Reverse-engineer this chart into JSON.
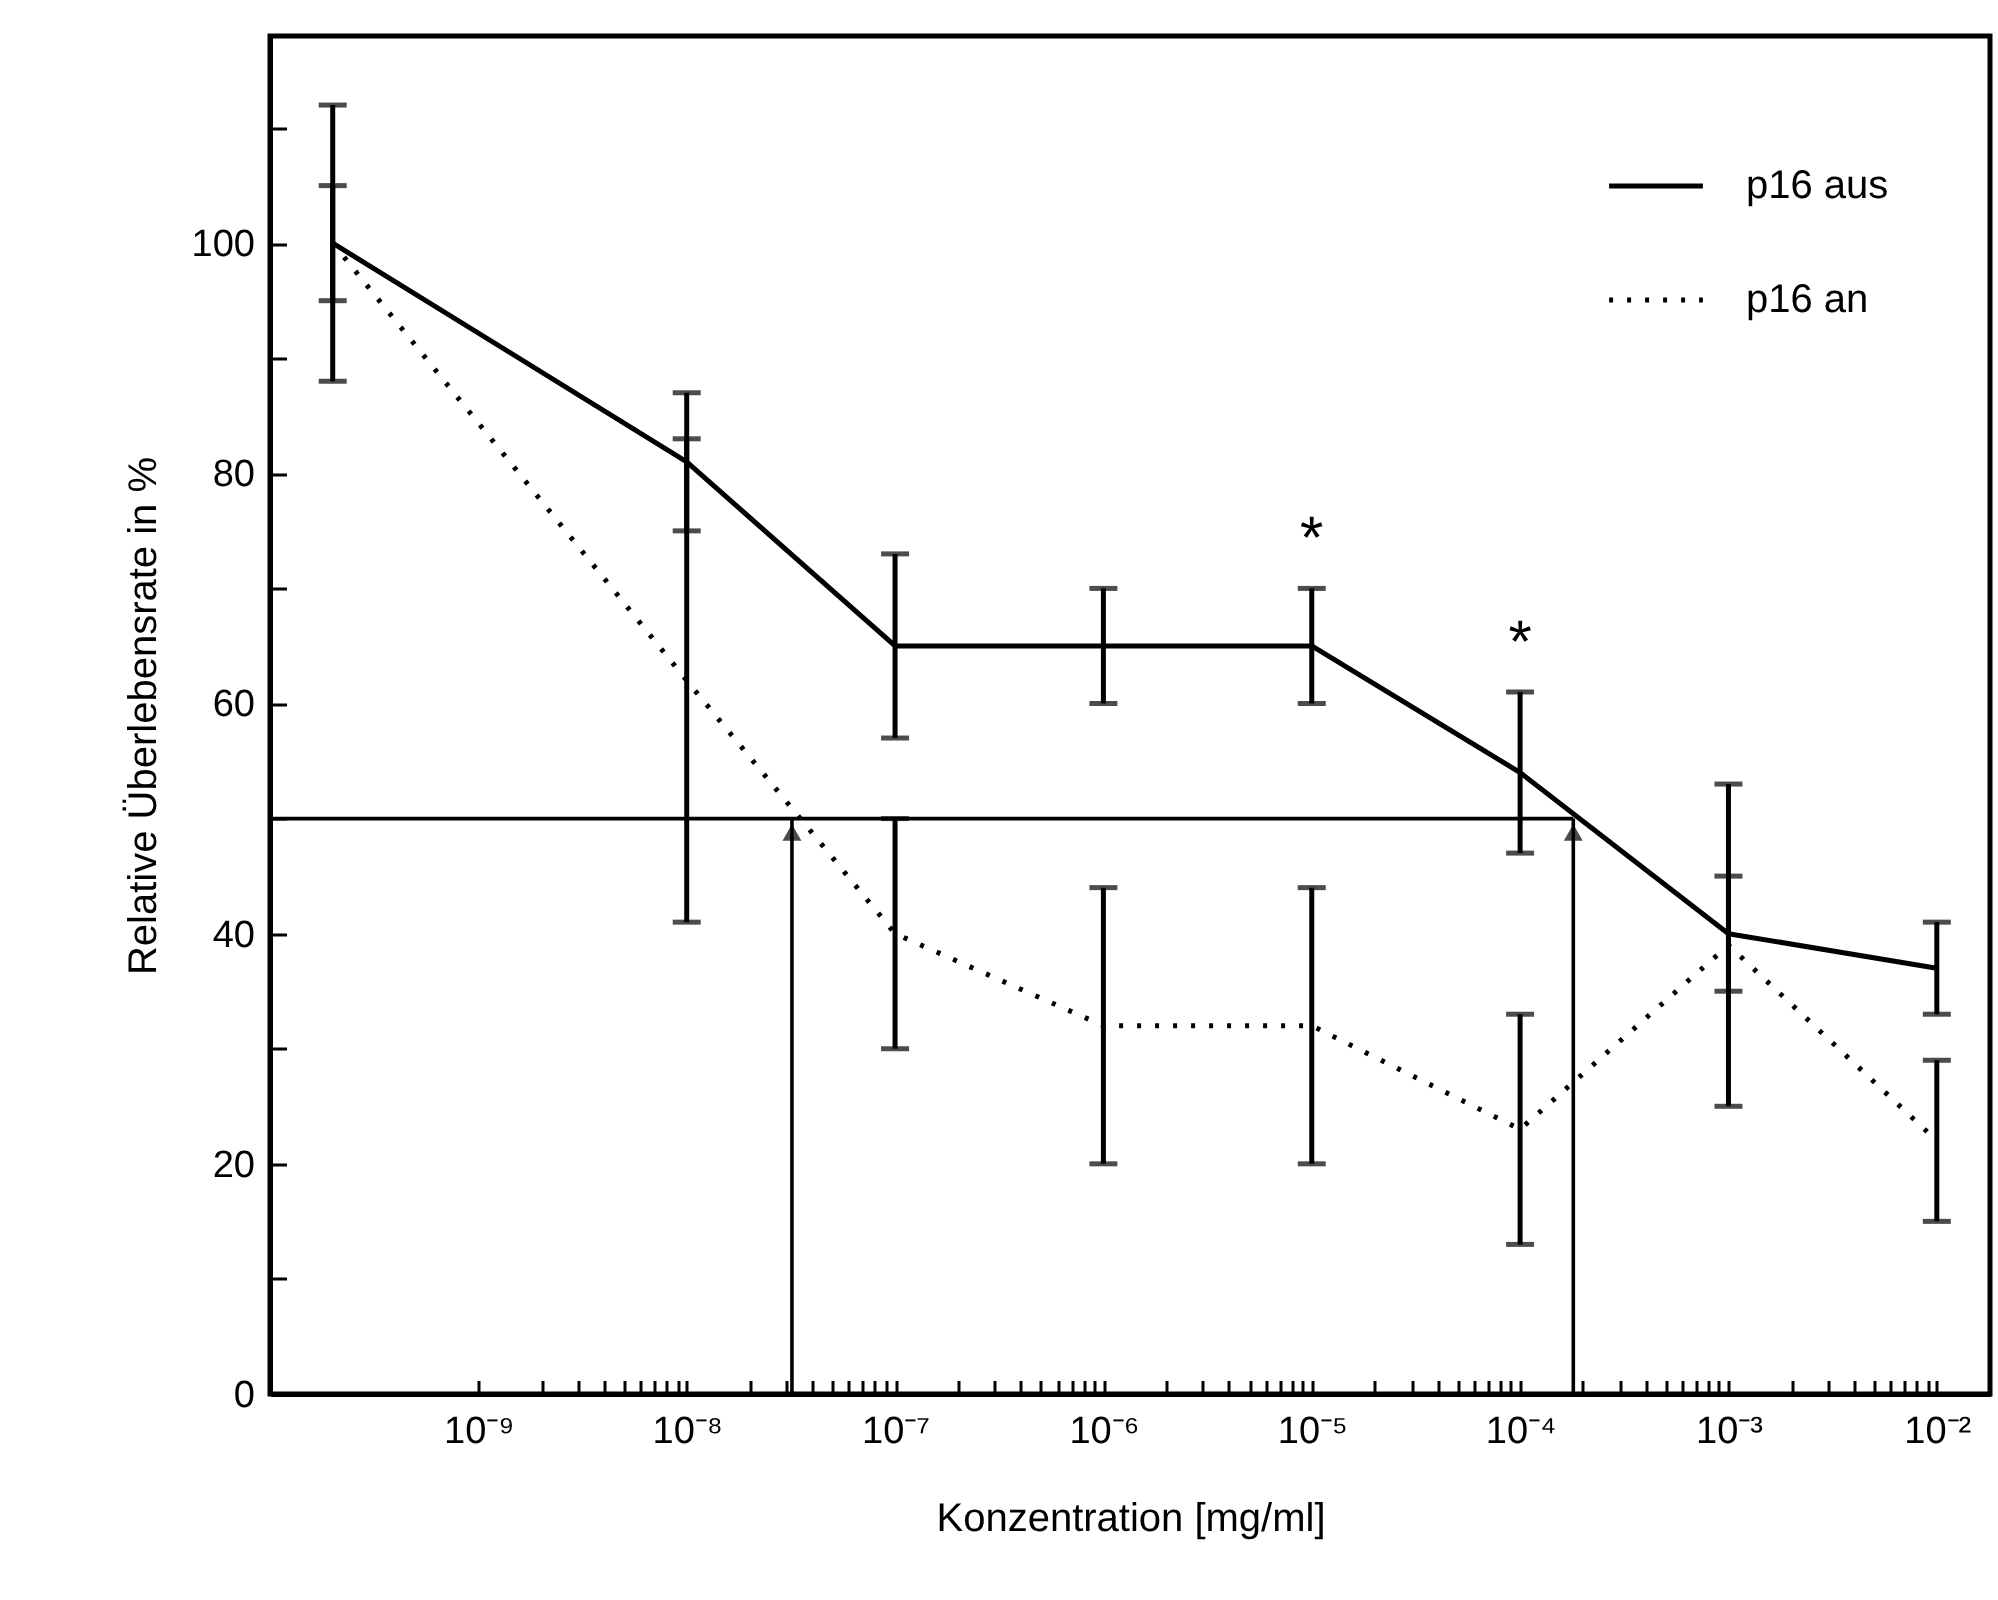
{
  "chart_data": {
    "type": "line",
    "xlabel": "Konzentration [mg/ml]",
    "ylabel": "Relative Überlebensrate in %",
    "x": [
      2e-10,
      1e-08,
      1e-07,
      1e-06,
      1e-05,
      0.0001,
      0.001,
      0.01
    ],
    "series": [
      {
        "name": "p16 aus",
        "color": "#000000",
        "line_style": "solid",
        "values": [
          100,
          81,
          65,
          65,
          65,
          54,
          40,
          37
        ],
        "errors": [
          5,
          6,
          8,
          5,
          5,
          7,
          5,
          4
        ]
      },
      {
        "name": "p16 an",
        "color": "#000000",
        "line_style": "dotted",
        "values": [
          100,
          62,
          40,
          32,
          32,
          23,
          39,
          22
        ],
        "errors": [
          12,
          21,
          10,
          12,
          12,
          10,
          14,
          7
        ]
      }
    ],
    "log": "x",
    "xlim": [
      1e-10,
      0.018
    ],
    "xticks": [
      {
        "value": 1e-09,
        "label": "10⁻⁹"
      },
      {
        "value": 2e-09,
        "label": null
      },
      {
        "value": 3e-09,
        "label": null
      },
      {
        "value": 4e-09,
        "label": null
      },
      {
        "value": 5e-09,
        "label": null
      },
      {
        "value": 6e-09,
        "label": null
      },
      {
        "value": 7e-09,
        "label": null
      },
      {
        "value": 8e-09,
        "label": null
      },
      {
        "value": 9e-09,
        "label": null
      },
      {
        "value": 1e-08,
        "label": "10⁻⁸"
      },
      {
        "value": 2e-08,
        "label": null
      },
      {
        "value": 3e-08,
        "label": null
      },
      {
        "value": 4e-08,
        "label": null
      },
      {
        "value": 5e-08,
        "label": null
      },
      {
        "value": 6e-08,
        "label": null
      },
      {
        "value": 7e-08,
        "label": null
      },
      {
        "value": 8e-08,
        "label": null
      },
      {
        "value": 9e-08,
        "label": null
      },
      {
        "value": 1e-07,
        "label": "10⁻⁷"
      },
      {
        "value": 2e-07,
        "label": null
      },
      {
        "value": 3e-07,
        "label": null
      },
      {
        "value": 4e-07,
        "label": null
      },
      {
        "value": 5e-07,
        "label": null
      },
      {
        "value": 6e-07,
        "label": null
      },
      {
        "value": 7e-07,
        "label": null
      },
      {
        "value": 8e-07,
        "label": null
      },
      {
        "value": 9e-07,
        "label": null
      },
      {
        "value": 1e-06,
        "label": "10⁻⁶"
      },
      {
        "value": 2e-06,
        "label": null
      },
      {
        "value": 3e-06,
        "label": null
      },
      {
        "value": 4e-06,
        "label": null
      },
      {
        "value": 5e-06,
        "label": null
      },
      {
        "value": 6e-06,
        "label": null
      },
      {
        "value": 7e-06,
        "label": null
      },
      {
        "value": 8e-06,
        "label": null
      },
      {
        "value": 9e-06,
        "label": null
      },
      {
        "value": 1e-05,
        "label": "10⁻⁵"
      },
      {
        "value": 2e-05,
        "label": null
      },
      {
        "value": 3e-05,
        "label": null
      },
      {
        "value": 4e-05,
        "label": null
      },
      {
        "value": 5e-05,
        "label": null
      },
      {
        "value": 6e-05,
        "label": null
      },
      {
        "value": 7e-05,
        "label": null
      },
      {
        "value": 8e-05,
        "label": null
      },
      {
        "value": 9e-05,
        "label": null
      },
      {
        "value": 0.0001,
        "label": "10⁻⁴"
      },
      {
        "value": 0.0002,
        "label": null
      },
      {
        "value": 0.0003,
        "label": null
      },
      {
        "value": 0.0004,
        "label": null
      },
      {
        "value": 0.0005,
        "label": null
      },
      {
        "value": 0.0006,
        "label": null
      },
      {
        "value": 0.0007,
        "label": null
      },
      {
        "value": 0.0008,
        "label": null
      },
      {
        "value": 0.0009,
        "label": null
      },
      {
        "value": 0.001,
        "label": "10⁻³"
      },
      {
        "value": 0.002,
        "label": null
      },
      {
        "value": 0.003,
        "label": null
      },
      {
        "value": 0.004,
        "label": null
      },
      {
        "value": 0.005,
        "label": null
      },
      {
        "value": 0.006,
        "label": null
      },
      {
        "value": 0.007,
        "label": null
      },
      {
        "value": 0.008,
        "label": null
      },
      {
        "value": 0.009,
        "label": null
      },
      {
        "value": 0.01,
        "label": "10⁻²"
      }
    ],
    "ylim": [
      0,
      118
    ],
    "yticks": [
      0,
      {
        "value": 10,
        "label": null
      },
      20,
      {
        "value": 30,
        "label": null
      },
      40,
      {
        "value": 50,
        "label": null
      },
      60,
      {
        "value": 70,
        "label": null
      },
      80,
      {
        "value": 90,
        "label": null
      },
      100,
      {
        "value": 110,
        "label": null
      }
    ],
    "ref_lines": [
      {
        "axis": "y",
        "value": 50
      },
      {
        "axis": "x",
        "value": 3.2e-08
      },
      {
        "axis": "x",
        "value": 0.00018
      }
    ],
    "annotations": [
      {
        "text": "*",
        "x": 1e-05,
        "y": 70
      },
      {
        "text": "*",
        "x": 0.0001,
        "y": 61
      }
    ],
    "legend": "top right"
  }
}
